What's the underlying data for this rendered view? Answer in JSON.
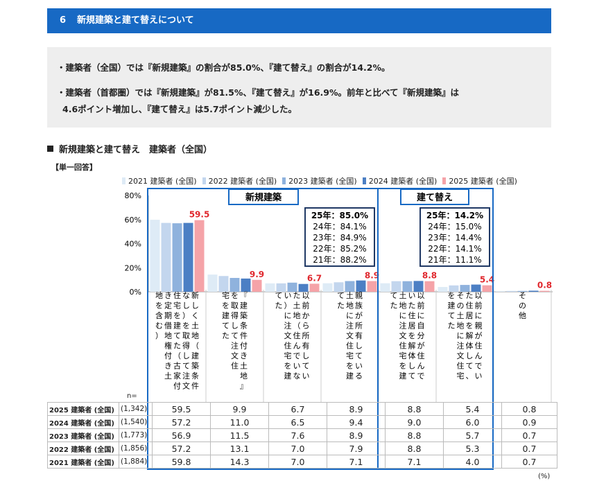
{
  "header": {
    "number": "6",
    "title": "新規建築と建て替えについて"
  },
  "summary": {
    "line1": "・建築者（全国）では『新規建築』の割合が85.0%、『建て替え』の割合が14.2%。",
    "line2": "・建築者（首都圏）では『新規建築』が81.5%、『建て替え』が16.9%。前年と比べて『新規建築』は",
    "line3": "4.6ポイント増加し、『建て替え』は5.7ポイント減少した。"
  },
  "section_title": "新規建築と建て替え　建築者（全国）",
  "response_type": "【単一回答】",
  "n_label": "n=",
  "unit": "(%)",
  "chart_data": {
    "type": "bar",
    "title": "新規建築と建て替え　建築者（全国）",
    "ylim": [
      0,
      80
    ],
    "yticks": [
      "80%",
      "60%",
      "40%",
      "20%",
      "0%"
    ],
    "series_colors": [
      "#deebf6",
      "#c3d6ee",
      "#8fb2dd",
      "#4c7fc4",
      "#f5a3a8"
    ],
    "series": [
      {
        "name": "2021 建築者 (全国)",
        "n": "(1,884)",
        "values": [
          59.8,
          14.3,
          7.0,
          7.1,
          7.1,
          4.0,
          0.7
        ]
      },
      {
        "name": "2022 建築者 (全国)",
        "n": "(1,856)",
        "values": [
          57.2,
          13.1,
          7.0,
          7.9,
          8.8,
          5.3,
          0.7
        ]
      },
      {
        "name": "2023 建築者 (全国)",
        "n": "(1,773)",
        "values": [
          56.9,
          11.5,
          7.6,
          8.9,
          8.8,
          5.7,
          0.7
        ]
      },
      {
        "name": "2024 建築者 (全国)",
        "n": "(1,540)",
        "values": [
          57.2,
          11.0,
          6.5,
          9.4,
          9.0,
          6.0,
          0.9
        ]
      },
      {
        "name": "2025 建築者 (全国)",
        "n": "(1,342)",
        "values": [
          59.5,
          9.9,
          6.7,
          8.9,
          8.8,
          5.4,
          0.8
        ]
      }
    ],
    "highlight_labels": [
      "59.5",
      "9.9",
      "6.7",
      "8.9",
      "8.8",
      "5.4",
      "0.8"
    ],
    "categories": [
      [
        "新しく土地（建築条件",
        "なし）を取得して注文",
        "住宅を建てた（古家付",
        "き定期借地権付き土",
        "地を含む）"
      ],
      [
        "『建築条件付き土地』",
        "を取得して注文住",
        "宅を建てた"
      ],
      [
        "以前から所有してい",
        "た土地（住んでいな",
        "い）に注文住宅を建",
        "てた"
      ],
      [
        "親族が所有している",
        "土地に注文住宅を建",
        "てた"
      ],
      [
        "以前に自分が住んで",
        "いた住居を解体して",
        "土地に注文住宅を建",
        "てた"
      ],
      [
        "以前に親が住んでい",
        "た住居を解体して、",
        "その土地に注文住宅",
        "を建てた"
      ],
      [
        "その他"
      ]
    ],
    "groups": [
      {
        "label": "新規建築",
        "stats": [
          "25年：85.0%",
          "24年：84.1%",
          "23年：84.9%",
          "22年：85.2%",
          "21年：88.2%"
        ]
      },
      {
        "label": "建て替え",
        "stats": [
          "25年：14.2%",
          "24年：15.0%",
          "23年：14.4%",
          "22年：14.1%",
          "21年：11.1%"
        ]
      }
    ]
  },
  "table": {
    "rows": [
      {
        "label": "2025 建築者 (全国)",
        "n": "(1,342)",
        "values": [
          "59.5",
          "9.9",
          "6.7",
          "8.9",
          "8.8",
          "5.4",
          "0.8"
        ]
      },
      {
        "label": "2024 建築者 (全国)",
        "n": "(1,540)",
        "values": [
          "57.2",
          "11.0",
          "6.5",
          "9.4",
          "9.0",
          "6.0",
          "0.9"
        ]
      },
      {
        "label": "2023 建築者 (全国)",
        "n": "(1,773)",
        "values": [
          "56.9",
          "11.5",
          "7.6",
          "8.9",
          "8.8",
          "5.7",
          "0.7"
        ]
      },
      {
        "label": "2022 建築者 (全国)",
        "n": "(1,856)",
        "values": [
          "57.2",
          "13.1",
          "7.0",
          "7.9",
          "8.8",
          "5.3",
          "0.7"
        ]
      },
      {
        "label": "2021 建築者 (全国)",
        "n": "(1,884)",
        "values": [
          "59.8",
          "14.3",
          "7.0",
          "7.1",
          "7.1",
          "4.0",
          "0.7"
        ]
      }
    ]
  }
}
